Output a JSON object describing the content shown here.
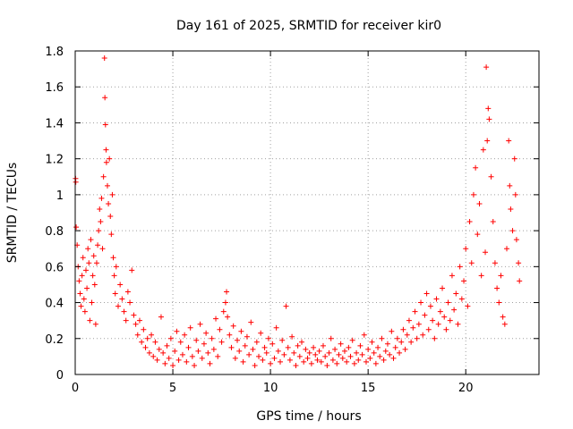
{
  "chart_data": {
    "type": "scatter",
    "title": "Day 161 of 2025, SRMTID for receiver kir0",
    "xlabel": "GPS time / hours",
    "ylabel": "SRMTID / TECUs",
    "xlim": [
      0,
      23.75
    ],
    "ylim": [
      0,
      1.8
    ],
    "x_ticks": [
      0,
      5,
      10,
      15,
      20
    ],
    "x_tick_labels": [
      "0",
      "5",
      "10",
      "15",
      "20"
    ],
    "y_ticks": [
      0,
      0.2,
      0.4,
      0.6,
      0.8,
      1.0,
      1.2,
      1.4,
      1.6,
      1.8
    ],
    "y_tick_labels": [
      "0",
      "0.2",
      "0.4",
      "0.6",
      "0.8",
      "1",
      "1.2",
      "1.4",
      "1.6",
      "1.8"
    ],
    "grid": true,
    "marker": "+",
    "marker_color": "#ff0000",
    "series": [
      {
        "name": "SRMTID",
        "points": [
          [
            0.02,
            1.09
          ],
          [
            0.03,
            1.07
          ],
          [
            0.05,
            0.82
          ],
          [
            0.1,
            0.72
          ],
          [
            0.15,
            0.6
          ],
          [
            0.2,
            0.52
          ],
          [
            0.25,
            0.45
          ],
          [
            0.3,
            0.38
          ],
          [
            0.35,
            0.55
          ],
          [
            0.4,
            0.65
          ],
          [
            0.45,
            0.42
          ],
          [
            0.5,
            0.35
          ],
          [
            0.55,
            0.58
          ],
          [
            0.6,
            0.48
          ],
          [
            0.65,
            0.7
          ],
          [
            0.7,
            0.62
          ],
          [
            0.75,
            0.3
          ],
          [
            0.8,
            0.75
          ],
          [
            0.85,
            0.4
          ],
          [
            0.9,
            0.55
          ],
          [
            0.95,
            0.66
          ],
          [
            1.0,
            0.5
          ],
          [
            1.05,
            0.28
          ],
          [
            1.1,
            0.62
          ],
          [
            1.15,
            0.72
          ],
          [
            1.2,
            0.8
          ],
          [
            1.25,
            0.92
          ],
          [
            1.3,
            0.85
          ],
          [
            1.35,
            0.98
          ],
          [
            1.4,
            0.7
          ],
          [
            1.45,
            1.1
          ],
          [
            1.5,
            1.76
          ],
          [
            1.52,
            1.54
          ],
          [
            1.55,
            1.39
          ],
          [
            1.58,
            1.25
          ],
          [
            1.6,
            1.18
          ],
          [
            1.65,
            1.05
          ],
          [
            1.7,
            0.95
          ],
          [
            1.75,
            1.2
          ],
          [
            1.8,
            0.88
          ],
          [
            1.85,
            0.78
          ],
          [
            1.9,
            1.0
          ],
          [
            1.95,
            0.65
          ],
          [
            2.0,
            0.55
          ],
          [
            2.05,
            0.45
          ],
          [
            2.1,
            0.6
          ],
          [
            2.2,
            0.38
          ],
          [
            2.3,
            0.5
          ],
          [
            2.4,
            0.42
          ],
          [
            2.5,
            0.35
          ],
          [
            2.6,
            0.3
          ],
          [
            2.7,
            0.46
          ],
          [
            2.8,
            0.4
          ],
          [
            2.9,
            0.58
          ],
          [
            3.0,
            0.33
          ],
          [
            3.1,
            0.28
          ],
          [
            3.2,
            0.22
          ],
          [
            3.3,
            0.3
          ],
          [
            3.4,
            0.18
          ],
          [
            3.5,
            0.25
          ],
          [
            3.6,
            0.15
          ],
          [
            3.7,
            0.2
          ],
          [
            3.8,
            0.12
          ],
          [
            3.9,
            0.22
          ],
          [
            4.0,
            0.1
          ],
          [
            4.1,
            0.18
          ],
          [
            4.2,
            0.08
          ],
          [
            4.3,
            0.14
          ],
          [
            4.4,
            0.32
          ],
          [
            4.5,
            0.12
          ],
          [
            4.6,
            0.06
          ],
          [
            4.7,
            0.16
          ],
          [
            4.8,
            0.09
          ],
          [
            4.9,
            0.2
          ],
          [
            5.0,
            0.05
          ],
          [
            5.1,
            0.13
          ],
          [
            5.2,
            0.24
          ],
          [
            5.3,
            0.08
          ],
          [
            5.4,
            0.18
          ],
          [
            5.5,
            0.11
          ],
          [
            5.6,
            0.22
          ],
          [
            5.7,
            0.07
          ],
          [
            5.8,
            0.15
          ],
          [
            5.9,
            0.26
          ],
          [
            6.0,
            0.1
          ],
          [
            6.1,
            0.05
          ],
          [
            6.2,
            0.19
          ],
          [
            6.3,
            0.13
          ],
          [
            6.4,
            0.28
          ],
          [
            6.5,
            0.09
          ],
          [
            6.6,
            0.17
          ],
          [
            6.7,
            0.23
          ],
          [
            6.8,
            0.12
          ],
          [
            6.9,
            0.06
          ],
          [
            7.0,
            0.2
          ],
          [
            7.1,
            0.14
          ],
          [
            7.2,
            0.31
          ],
          [
            7.3,
            0.1
          ],
          [
            7.4,
            0.25
          ],
          [
            7.5,
            0.18
          ],
          [
            7.6,
            0.35
          ],
          [
            7.7,
            0.4
          ],
          [
            7.75,
            0.46
          ],
          [
            7.8,
            0.32
          ],
          [
            7.9,
            0.22
          ],
          [
            8.0,
            0.15
          ],
          [
            8.1,
            0.27
          ],
          [
            8.2,
            0.09
          ],
          [
            8.3,
            0.19
          ],
          [
            8.4,
            0.13
          ],
          [
            8.5,
            0.24
          ],
          [
            8.6,
            0.07
          ],
          [
            8.7,
            0.16
          ],
          [
            8.8,
            0.21
          ],
          [
            8.9,
            0.11
          ],
          [
            9.0,
            0.29
          ],
          [
            9.1,
            0.14
          ],
          [
            9.2,
            0.05
          ],
          [
            9.3,
            0.18
          ],
          [
            9.4,
            0.1
          ],
          [
            9.5,
            0.23
          ],
          [
            9.6,
            0.08
          ],
          [
            9.7,
            0.15
          ],
          [
            9.8,
            0.12
          ],
          [
            9.9,
            0.2
          ],
          [
            10.0,
            0.06
          ],
          [
            10.1,
            0.17
          ],
          [
            10.2,
            0.09
          ],
          [
            10.3,
            0.26
          ],
          [
            10.4,
            0.13
          ],
          [
            10.5,
            0.07
          ],
          [
            10.6,
            0.19
          ],
          [
            10.7,
            0.11
          ],
          [
            10.8,
            0.38
          ],
          [
            10.9,
            0.15
          ],
          [
            11.0,
            0.08
          ],
          [
            11.1,
            0.21
          ],
          [
            11.2,
            0.12
          ],
          [
            11.3,
            0.05
          ],
          [
            11.4,
            0.16
          ],
          [
            11.5,
            0.1
          ],
          [
            11.6,
            0.18
          ],
          [
            11.7,
            0.07
          ],
          [
            11.8,
            0.14
          ],
          [
            11.9,
            0.09
          ],
          [
            12.0,
            0.12
          ],
          [
            12.1,
            0.06
          ],
          [
            12.2,
            0.15
          ],
          [
            12.3,
            0.11
          ],
          [
            12.4,
            0.08
          ],
          [
            12.5,
            0.13
          ],
          [
            12.6,
            0.07
          ],
          [
            12.7,
            0.16
          ],
          [
            12.8,
            0.1
          ],
          [
            12.9,
            0.05
          ],
          [
            13.0,
            0.12
          ],
          [
            13.1,
            0.2
          ],
          [
            13.2,
            0.08
          ],
          [
            13.3,
            0.14
          ],
          [
            13.4,
            0.06
          ],
          [
            13.5,
            0.11
          ],
          [
            13.6,
            0.17
          ],
          [
            13.7,
            0.09
          ],
          [
            13.8,
            0.13
          ],
          [
            13.9,
            0.07
          ],
          [
            14.0,
            0.15
          ],
          [
            14.1,
            0.1
          ],
          [
            14.2,
            0.19
          ],
          [
            14.3,
            0.06
          ],
          [
            14.4,
            0.12
          ],
          [
            14.5,
            0.08
          ],
          [
            14.6,
            0.16
          ],
          [
            14.7,
            0.11
          ],
          [
            14.8,
            0.22
          ],
          [
            14.9,
            0.07
          ],
          [
            15.0,
            0.14
          ],
          [
            15.1,
            0.09
          ],
          [
            15.2,
            0.18
          ],
          [
            15.3,
            0.12
          ],
          [
            15.4,
            0.06
          ],
          [
            15.5,
            0.15
          ],
          [
            15.6,
            0.1
          ],
          [
            15.7,
            0.2
          ],
          [
            15.8,
            0.08
          ],
          [
            15.9,
            0.13
          ],
          [
            16.0,
            0.17
          ],
          [
            16.1,
            0.11
          ],
          [
            16.2,
            0.24
          ],
          [
            16.3,
            0.09
          ],
          [
            16.4,
            0.15
          ],
          [
            16.5,
            0.2
          ],
          [
            16.6,
            0.12
          ],
          [
            16.7,
            0.18
          ],
          [
            16.8,
            0.25
          ],
          [
            16.9,
            0.14
          ],
          [
            17.0,
            0.22
          ],
          [
            17.1,
            0.3
          ],
          [
            17.2,
            0.18
          ],
          [
            17.3,
            0.26
          ],
          [
            17.4,
            0.35
          ],
          [
            17.5,
            0.2
          ],
          [
            17.6,
            0.28
          ],
          [
            17.7,
            0.4
          ],
          [
            17.8,
            0.22
          ],
          [
            17.9,
            0.33
          ],
          [
            18.0,
            0.45
          ],
          [
            18.1,
            0.25
          ],
          [
            18.2,
            0.38
          ],
          [
            18.3,
            0.3
          ],
          [
            18.4,
            0.2
          ],
          [
            18.5,
            0.42
          ],
          [
            18.6,
            0.28
          ],
          [
            18.7,
            0.35
          ],
          [
            18.8,
            0.48
          ],
          [
            18.9,
            0.32
          ],
          [
            19.0,
            0.25
          ],
          [
            19.1,
            0.4
          ],
          [
            19.2,
            0.3
          ],
          [
            19.3,
            0.55
          ],
          [
            19.4,
            0.36
          ],
          [
            19.5,
            0.45
          ],
          [
            19.6,
            0.28
          ],
          [
            19.7,
            0.6
          ],
          [
            19.8,
            0.42
          ],
          [
            19.9,
            0.52
          ],
          [
            20.0,
            0.7
          ],
          [
            20.1,
            0.38
          ],
          [
            20.2,
            0.85
          ],
          [
            20.3,
            0.62
          ],
          [
            20.4,
            1.0
          ],
          [
            20.5,
            1.15
          ],
          [
            20.6,
            0.78
          ],
          [
            20.7,
            0.95
          ],
          [
            20.8,
            0.55
          ],
          [
            20.9,
            1.25
          ],
          [
            21.0,
            0.68
          ],
          [
            21.05,
            1.71
          ],
          [
            21.1,
            1.3
          ],
          [
            21.15,
            1.48
          ],
          [
            21.2,
            1.42
          ],
          [
            21.3,
            1.1
          ],
          [
            21.4,
            0.85
          ],
          [
            21.5,
            0.62
          ],
          [
            21.6,
            0.48
          ],
          [
            21.7,
            0.4
          ],
          [
            21.8,
            0.55
          ],
          [
            21.9,
            0.32
          ],
          [
            22.0,
            0.28
          ],
          [
            22.1,
            0.7
          ],
          [
            22.2,
            1.3
          ],
          [
            22.25,
            1.05
          ],
          [
            22.3,
            0.92
          ],
          [
            22.4,
            0.8
          ],
          [
            22.5,
            1.2
          ],
          [
            22.55,
            1.0
          ],
          [
            22.6,
            0.75
          ],
          [
            22.7,
            0.62
          ],
          [
            22.75,
            0.52
          ]
        ]
      }
    ]
  }
}
